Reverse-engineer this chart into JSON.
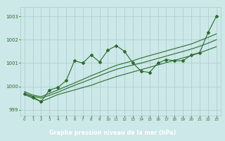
{
  "bg_color": "#cce8e8",
  "plot_bg_color": "#cce8e8",
  "label_bg_color": "#2d6b2d",
  "grid_color": "#aacccc",
  "line_color": "#2d6b2d",
  "xlabel": "Graphe pression niveau de la mer (hPa)",
  "xlabel_color": "#ffffff",
  "ylim": [
    998.75,
    1003.4
  ],
  "xlim": [
    -0.5,
    23.5
  ],
  "yticks": [
    999,
    1000,
    1001,
    1002,
    1003
  ],
  "xticks": [
    0,
    1,
    2,
    3,
    4,
    5,
    6,
    7,
    8,
    9,
    10,
    11,
    12,
    13,
    14,
    15,
    16,
    17,
    18,
    19,
    20,
    21,
    22,
    23
  ],
  "series_main": [
    999.7,
    999.55,
    999.35,
    999.85,
    999.95,
    1000.25,
    1001.1,
    1001.0,
    1001.35,
    1001.05,
    1001.55,
    1001.75,
    1001.5,
    1001.0,
    1000.65,
    1000.6,
    1001.0,
    1001.15,
    1001.1,
    1001.1,
    1001.35,
    1001.45,
    1002.3,
    1003.0
  ],
  "series_low": [
    999.65,
    999.5,
    999.35,
    999.5,
    999.65,
    999.75,
    999.85,
    999.95,
    1000.05,
    1000.18,
    1000.3,
    1000.42,
    1000.52,
    1000.62,
    1000.72,
    1000.82,
    1000.92,
    1001.02,
    1001.12,
    1001.22,
    1001.32,
    1001.44,
    1001.57,
    1001.7
  ],
  "series_mid": [
    999.7,
    999.58,
    999.5,
    999.62,
    999.75,
    999.9,
    1000.05,
    1000.18,
    1000.32,
    1000.46,
    1000.6,
    1000.73,
    1000.83,
    1000.92,
    1001.0,
    1001.1,
    1001.2,
    1001.3,
    1001.4,
    1001.5,
    1001.6,
    1001.72,
    1001.85,
    1002.0
  ],
  "series_high": [
    999.78,
    999.63,
    999.56,
    999.7,
    999.85,
    1000.0,
    1000.15,
    1000.3,
    1000.46,
    1000.6,
    1000.76,
    1000.9,
    1001.0,
    1001.1,
    1001.22,
    1001.32,
    1001.42,
    1001.52,
    1001.62,
    1001.72,
    1001.82,
    1001.96,
    1002.1,
    1002.25
  ]
}
